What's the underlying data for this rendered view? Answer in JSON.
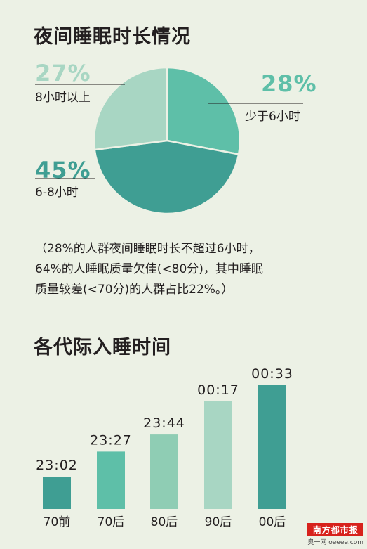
{
  "section1_title": "夜间睡眠时长情况",
  "section2_title": "各代际入睡时间",
  "note_lines": [
    "（28%的人群夜间睡眠时长不超过6小时，",
    "64%的人睡眠质量欠佳(<80分)，其中睡眠",
    "质量较差(<70分)的人群占比22%。）"
  ],
  "chart_data": [
    {
      "type": "pie",
      "title": "夜间睡眠时长情况",
      "slices": [
        {
          "label": "少于6小时",
          "value": 28,
          "value_label": "28%",
          "color": "#5ebfa8"
        },
        {
          "label": "6-8小时",
          "value": 45,
          "value_label": "45%",
          "color": "#3f9e93"
        },
        {
          "label": "8小时以上",
          "value": 27,
          "value_label": "27%",
          "color": "#a8d6c3"
        }
      ]
    },
    {
      "type": "bar",
      "title": "各代际入睡时间",
      "categories": [
        "70前",
        "70后",
        "80后",
        "90后",
        "00后"
      ],
      "values": [
        "23:02",
        "23:27",
        "23:44",
        "00:17",
        "00:33"
      ],
      "minutes_after_midnight": [
        -58,
        -33,
        -16,
        17,
        33
      ],
      "colors": [
        "#3f9e93",
        "#5ebfa8",
        "#8fcdb4",
        "#a8d6c3",
        "#3f9e93"
      ],
      "grid": false,
      "legend": "none"
    }
  ],
  "watermark": {
    "logo": "南方都市报",
    "sub": "奥一网 oeeee.com"
  }
}
